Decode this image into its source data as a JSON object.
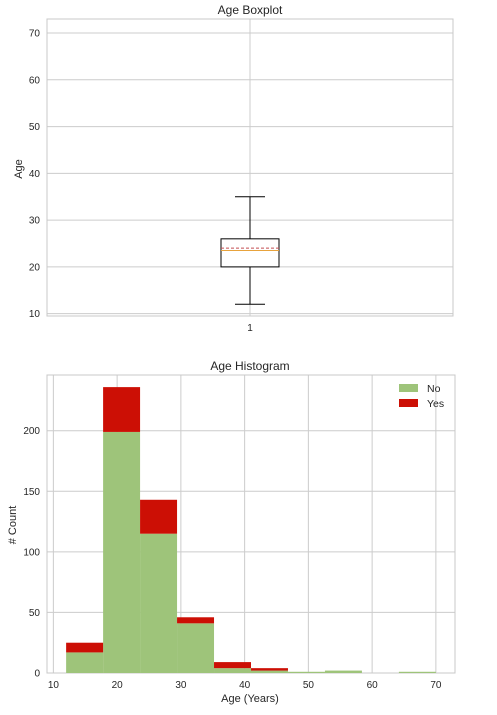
{
  "chart_data": [
    {
      "type": "box",
      "title": "Age Boxplot",
      "xlabel": "",
      "ylabel": "Age",
      "categories": [
        "1"
      ],
      "box": {
        "whisker_low": 12,
        "q1": 20,
        "median": 23.5,
        "mean": 24,
        "q3": 26,
        "whisker_high": 35
      },
      "ylim": [
        9.5,
        73
      ],
      "yticks": [
        10,
        20,
        30,
        40,
        50,
        60,
        70
      ],
      "grid": true,
      "colors": {
        "box": "#000000",
        "median": "#e8a33d",
        "mean": "#c44e52"
      }
    },
    {
      "type": "bar",
      "stacked": true,
      "title": "Age Histogram",
      "xlabel": "Age (Years)",
      "ylabel": "# Count",
      "bin_edges": [
        12,
        17.8,
        23.6,
        29.4,
        35.2,
        41.0,
        46.8,
        52.6,
        58.4,
        64.2,
        70
      ],
      "series": [
        {
          "name": "No",
          "color": "#9ec47a",
          "values": [
            17,
            199,
            115,
            41,
            4,
            2,
            1,
            2,
            0,
            1
          ]
        },
        {
          "name": "Yes",
          "color": "#cc0f05",
          "values": [
            8,
            37,
            28,
            5,
            5,
            2,
            0,
            0,
            0,
            0
          ]
        }
      ],
      "xlim": [
        9,
        73
      ],
      "ylim": [
        0,
        246
      ],
      "xticks": [
        10,
        20,
        30,
        40,
        50,
        60,
        70
      ],
      "yticks": [
        0,
        50,
        100,
        150,
        200
      ],
      "grid": true,
      "legend": "top-right"
    }
  ]
}
